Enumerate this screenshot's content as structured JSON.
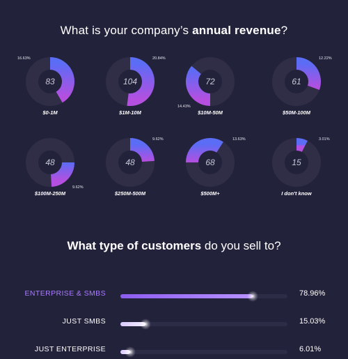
{
  "headline1": {
    "pre": "What is your company’s ",
    "bold": "annual revenue",
    "post": "?"
  },
  "headline2": {
    "bold": "What type of customers",
    "post": " do you sell to?"
  },
  "colors": {
    "background": "#23223b",
    "ring_track": "#2f2e46",
    "gradient_start": "#5b6cf5",
    "gradient_end": "#b54fe0",
    "bar_track": "#2d2c47",
    "bar_highlight": "#8d5cf0",
    "bar_light": "#d9c8ff"
  },
  "chart_data": [
    {
      "type": "pie",
      "categories": [
        "$0-1M",
        "$1M-10M",
        "$10M-50M",
        "$50M-100M",
        "$100M-250M",
        "$250M-500M",
        "$500M+",
        "I don't know"
      ],
      "counts": [
        "83",
        "104",
        "72",
        "61",
        "48",
        "48",
        "68",
        "15"
      ],
      "percent_labels": [
        "16.63%",
        "20.84%",
        "14.43%",
        "12.22%",
        "9.62%",
        "9.62%",
        "13.63%",
        "3.01%"
      ],
      "values": [
        16.63,
        20.84,
        14.43,
        12.22,
        9.62,
        9.62,
        13.63,
        3.01
      ],
      "rotation_deg": [
        0,
        0,
        180,
        0,
        90,
        0,
        270,
        0
      ],
      "label_side": [
        "tl",
        "tr",
        "bl",
        "tr",
        "br",
        "tr",
        "tr",
        "tr"
      ]
    },
    {
      "type": "bar",
      "orientation": "horizontal",
      "categories": [
        "ENTERPRISE & SMBS",
        "JUST SMBS",
        "JUST ENTERPRISE"
      ],
      "value_labels": [
        "78.96%",
        "15.03%",
        "6.01%"
      ],
      "values": [
        78.96,
        15.03,
        6.01
      ],
      "xlim": [
        0,
        100
      ],
      "label_colors": [
        "#a97cff",
        "#ffffff",
        "#ffffff"
      ]
    }
  ]
}
